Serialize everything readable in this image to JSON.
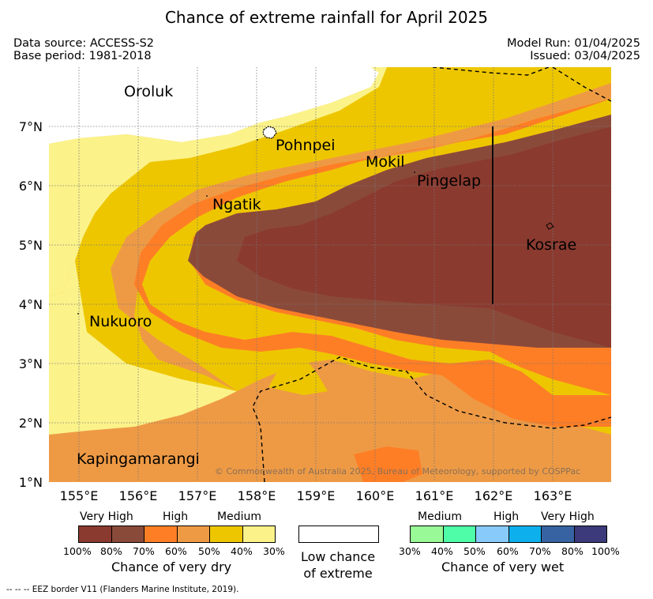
{
  "title": "Chance of extreme rainfall for April 2025",
  "meta": {
    "data_source": "Data source: ACCESS-S2",
    "base_period": "Base period: 1981-2018",
    "model_run": "Model Run: 01/04/2025",
    "issued": "Issued: 03/04/2025"
  },
  "map": {
    "longitude_labels": [
      "155°E",
      "156°E",
      "157°E",
      "158°E",
      "159°E",
      "160°E",
      "161°E",
      "162°E",
      "163°E"
    ],
    "latitude_labels": [
      "7°N",
      "6°N",
      "5°N",
      "4°N",
      "3°N",
      "2°N",
      "1°N"
    ],
    "places": {
      "oroluk": "Oroluk",
      "pohnpei": "Pohnpei",
      "mokil": "Mokil",
      "pingelap": "Pingelap",
      "ngatik": "Ngatik",
      "kosrae": "Kosrae",
      "nukuoro": "Nukuoro",
      "kapingamarangi": "Kapingamarangi"
    },
    "copyright": "© Commonwealth of Australia 2025, Bureau of Meteorology, supported by COSPPac"
  },
  "legend": {
    "dry": {
      "headings": [
        "Very High",
        "High",
        "Medium"
      ],
      "ticks": [
        "100%",
        "80%",
        "70%",
        "60%",
        "50%",
        "40%",
        "30%"
      ],
      "colors": [
        "#8b3a2f",
        "#8a4a3a",
        "#fe7e26",
        "#ee9a45",
        "#edc600",
        "#fbf28a"
      ],
      "title": "Chance of very dry"
    },
    "neutral": {
      "title_line1": "Low chance",
      "title_line2": "of extreme",
      "color": "#ffffff"
    },
    "wet": {
      "headings": [
        "Medium",
        "High",
        "Very High"
      ],
      "ticks": [
        "30%",
        "40%",
        "50%",
        "60%",
        "70%",
        "80%",
        "100%"
      ],
      "colors": [
        "#99f996",
        "#4ffca8",
        "#88cbfb",
        "#0db0ec",
        "#3763a2",
        "#3c3a7b"
      ],
      "title": "Chance of very wet"
    }
  },
  "footer": "--  --  -- EEZ border V11 (Flanders Marine Institute, 2019)."
}
